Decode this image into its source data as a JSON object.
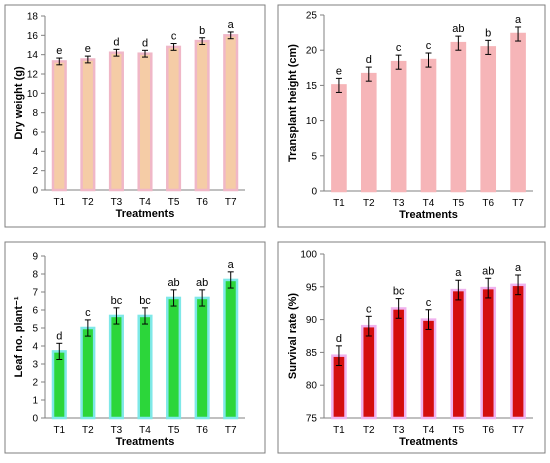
{
  "chart_data": [
    {
      "type": "bar",
      "ylabel": "Dry weight (g)",
      "xlabel": "Treatments",
      "categories": [
        "T1",
        "T2",
        "T3",
        "T4",
        "T5",
        "T6",
        "T7"
      ],
      "values": [
        13.3,
        13.5,
        14.2,
        14.1,
        14.8,
        15.4,
        16.0
      ],
      "errors": [
        0.35,
        0.35,
        0.35,
        0.35,
        0.35,
        0.35,
        0.35
      ],
      "letters": [
        "e",
        "e",
        "d",
        "d",
        "c",
        "b",
        "a"
      ],
      "ylim": [
        0,
        18
      ],
      "yticks": [
        0,
        2,
        4,
        6,
        8,
        10,
        12,
        14,
        16,
        18
      ],
      "grid": false,
      "colors": {
        "fill": "#f5cca6",
        "edge": "#f0b7c7"
      }
    },
    {
      "type": "bar",
      "ylabel": "Transplant height (cm)",
      "xlabel": "Treatments",
      "categories": [
        "T1",
        "T2",
        "T3",
        "T4",
        "T5",
        "T6",
        "T7"
      ],
      "values": [
        15.0,
        16.6,
        18.3,
        18.6,
        21.0,
        20.4,
        22.3
      ],
      "errors": [
        1.0,
        1.0,
        1.0,
        1.0,
        1.0,
        1.0,
        1.0
      ],
      "letters": [
        "e",
        "d",
        "c",
        "c",
        "ab",
        "b",
        "a"
      ],
      "ylim": [
        0,
        25
      ],
      "yticks": [
        0,
        5,
        10,
        15,
        20,
        25
      ],
      "grid": false,
      "colors": {
        "fill": "#f6b5b8",
        "edge": "#f6b5b8"
      }
    },
    {
      "type": "bar",
      "ylabel": "Leaf no. plant⁻¹",
      "xlabel": "Treatments",
      "categories": [
        "T1",
        "T2",
        "T3",
        "T4",
        "T5",
        "T6",
        "T7"
      ],
      "values": [
        3.7,
        5.0,
        5.67,
        5.67,
        6.67,
        6.67,
        7.67
      ],
      "errors": [
        0.45,
        0.45,
        0.45,
        0.45,
        0.45,
        0.45,
        0.45
      ],
      "letters": [
        "d",
        "c",
        "bc",
        "bc",
        "ab",
        "ab",
        "a"
      ],
      "ylim": [
        0,
        9
      ],
      "yticks": [
        0,
        1,
        2,
        3,
        4,
        5,
        6,
        7,
        8,
        9
      ],
      "grid": false,
      "colors": {
        "fill": "#2cd63a",
        "edge": "#7fe8e8"
      }
    },
    {
      "type": "bar",
      "ylabel": "Survival rate (%)",
      "xlabel": "Treatments",
      "categories": [
        "T1",
        "T2",
        "T3",
        "T4",
        "T5",
        "T6",
        "T7"
      ],
      "values": [
        84.5,
        89.0,
        91.7,
        90.0,
        94.5,
        94.8,
        95.3
      ],
      "errors": [
        1.5,
        1.5,
        1.5,
        1.5,
        1.5,
        1.5,
        1.5
      ],
      "letters": [
        "d",
        "c",
        "bc",
        "c",
        "a",
        "ab",
        "a"
      ],
      "ylim": [
        75,
        100
      ],
      "yticks": [
        75,
        80,
        85,
        90,
        95,
        100
      ],
      "grid": false,
      "colors": {
        "fill": "#d40e0e",
        "edge": "#f0b2ee"
      }
    }
  ]
}
